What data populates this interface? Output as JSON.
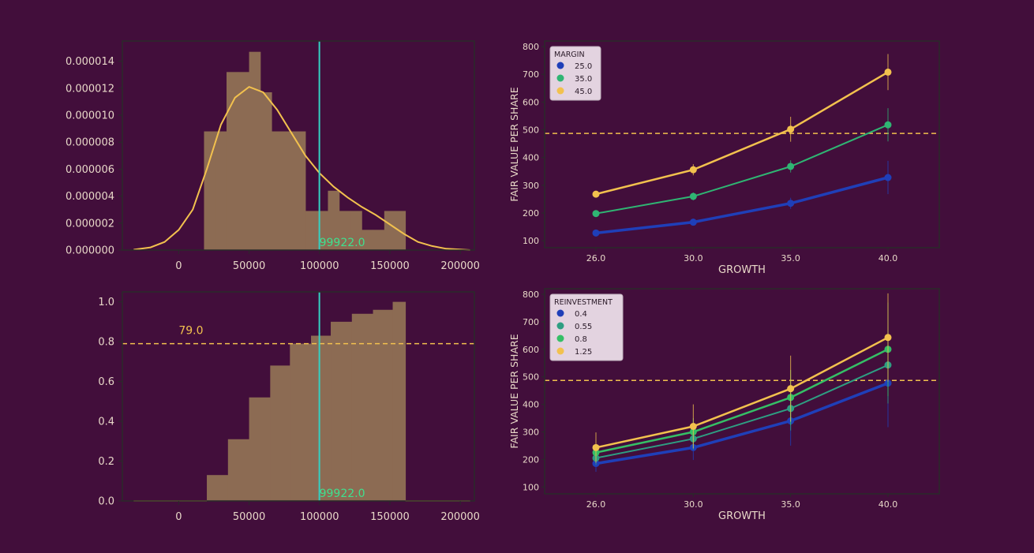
{
  "chart_data": [
    {
      "id": "hist",
      "type": "bar",
      "bins": [
        {
          "x0": 18000,
          "x1": 26000,
          "value": 8.8e-06
        },
        {
          "x0": 26000,
          "x1": 34000,
          "value": 8.8e-06
        },
        {
          "x0": 34000,
          "x1": 42000,
          "value": 1.32e-05
        },
        {
          "x0": 42000,
          "x1": 50000,
          "value": 1.32e-05
        },
        {
          "x0": 50000,
          "x1": 58000,
          "value": 1.47e-05
        },
        {
          "x0": 58000,
          "x1": 66000,
          "value": 1.17e-05
        },
        {
          "x0": 66000,
          "x1": 74000,
          "value": 8.8e-06
        },
        {
          "x0": 74000,
          "x1": 82000,
          "value": 8.8e-06
        },
        {
          "x0": 82000,
          "x1": 90000,
          "value": 8.8e-06
        },
        {
          "x0": 90000,
          "x1": 98000,
          "value": 2.9e-06
        },
        {
          "x0": 98000,
          "x1": 106000,
          "value": 2.9e-06
        },
        {
          "x0": 106000,
          "x1": 114000,
          "value": 4.4e-06
        },
        {
          "x0": 114000,
          "x1": 122000,
          "value": 2.9e-06
        },
        {
          "x0": 122000,
          "x1": 130000,
          "value": 2.9e-06
        },
        {
          "x0": 130000,
          "x1": 138000,
          "value": 1.5e-06
        },
        {
          "x0": 138000,
          "x1": 146000,
          "value": 1.5e-06
        },
        {
          "x0": 146000,
          "x1": 161000,
          "value": 2.9e-06
        }
      ],
      "kde": {
        "x": [
          -32000,
          -20000,
          -10000,
          0,
          10000,
          20000,
          30000,
          40000,
          50000,
          60000,
          70000,
          80000,
          90000,
          100000,
          110000,
          120000,
          130000,
          140000,
          150000,
          160000,
          170000,
          180000,
          190000,
          207000
        ],
        "y": [
          3e-08,
          2e-07,
          6e-07,
          1.5e-06,
          3e-06,
          6e-06,
          9.3e-06,
          1.13e-05,
          1.21e-05,
          1.17e-05,
          1.04e-05,
          8.7e-06,
          7e-06,
          5.7e-06,
          4.7e-06,
          3.9e-06,
          3.2e-06,
          2.6e-06,
          1.9e-06,
          1.2e-06,
          6e-07,
          3e-07,
          1e-07,
          0.0
        ]
      },
      "vline": {
        "x": 99922.0,
        "label": "99922.0"
      },
      "xlim": [
        -40000,
        210000
      ],
      "ylim": [
        0,
        1.55e-05
      ],
      "xticks": [
        0,
        50000,
        100000,
        150000,
        200000
      ],
      "xtick_labels": [
        "0",
        "50000",
        "100000",
        "150000",
        "200000"
      ],
      "yticks": [
        0,
        2e-06,
        4e-06,
        6e-06,
        8e-06,
        1e-05,
        1.2e-05,
        1.4e-05
      ],
      "ytick_labels": [
        "0.000000",
        "0.000002",
        "0.000004",
        "0.000006",
        "0.000008",
        "0.000010",
        "0.000012",
        "0.000014"
      ]
    },
    {
      "id": "cdf",
      "type": "bar",
      "steps": [
        {
          "x0": -32000,
          "x1": 20000,
          "value": 0.0
        },
        {
          "x0": 20000,
          "x1": 35000,
          "value": 0.13
        },
        {
          "x0": 35000,
          "x1": 50000,
          "value": 0.31
        },
        {
          "x0": 50000,
          "x1": 65000,
          "value": 0.52
        },
        {
          "x0": 65000,
          "x1": 79000,
          "value": 0.68
        },
        {
          "x0": 79000,
          "x1": 94000,
          "value": 0.79
        },
        {
          "x0": 94000,
          "x1": 108000,
          "value": 0.83
        },
        {
          "x0": 108000,
          "x1": 123000,
          "value": 0.9
        },
        {
          "x0": 123000,
          "x1": 138000,
          "value": 0.94
        },
        {
          "x0": 138000,
          "x1": 152000,
          "value": 0.96
        },
        {
          "x0": 152000,
          "x1": 161000,
          "value": 1.0
        },
        {
          "x0": 161000,
          "x1": 207000,
          "value": 0.0
        }
      ],
      "hline": {
        "y": 0.79,
        "label": "79.0",
        "label_x": 0
      },
      "vline": {
        "x": 99922.0,
        "label": "99922.0"
      },
      "xlim": [
        -40000,
        210000
      ],
      "ylim": [
        0,
        1.05
      ],
      "xticks": [
        0,
        50000,
        100000,
        150000,
        200000
      ],
      "xtick_labels": [
        "0",
        "50000",
        "100000",
        "150000",
        "200000"
      ],
      "yticks": [
        0,
        0.2,
        0.4,
        0.6,
        0.8,
        1.0
      ],
      "ytick_labels": [
        "0.0",
        "0.2",
        "0.4",
        "0.6",
        "0.8",
        "1.0"
      ]
    },
    {
      "id": "margin",
      "type": "line",
      "categories": [
        "26.0",
        "30.0",
        "35.0",
        "40.0"
      ],
      "xlabel": "GROWTH",
      "ylabel": "FAIR VALUE PER SHARE",
      "ylim": [
        75,
        820
      ],
      "yticks": [
        100,
        200,
        300,
        400,
        500,
        600,
        700,
        800
      ],
      "hline": 487,
      "legend": {
        "title": "MARGIN",
        "placement": "top-left"
      },
      "series": [
        {
          "name": "25.0",
          "color": "#1f3fb8",
          "width": 3.5,
          "values": [
            128,
            167,
            235,
            328
          ],
          "err": [
            8,
            12,
            20,
            60
          ]
        },
        {
          "name": "35.0",
          "color": "#2fb573",
          "width": 2,
          "values": [
            198,
            260,
            368,
            518
          ],
          "err": [
            8,
            14,
            22,
            60
          ]
        },
        {
          "name": "45.0",
          "color": "#f2c14e",
          "width": 2.5,
          "values": [
            268,
            356,
            502,
            708
          ],
          "err": [
            10,
            20,
            45,
            65
          ]
        }
      ]
    },
    {
      "id": "reinvestment",
      "type": "line",
      "categories": [
        "26.0",
        "30.0",
        "35.0",
        "40.0"
      ],
      "xlabel": "GROWTH",
      "ylabel": "FAIR VALUE PER SHARE",
      "ylim": [
        75,
        820
      ],
      "yticks": [
        100,
        200,
        300,
        400,
        500,
        600,
        700,
        800
      ],
      "hline": 487,
      "legend": {
        "title": "REINVESTMENT",
        "placement": "top-left"
      },
      "series": [
        {
          "name": "0.4",
          "color": "#1f3fb8",
          "width": 3.5,
          "values": [
            185,
            243,
            340,
            477
          ],
          "err": [
            30,
            45,
            90,
            160
          ]
        },
        {
          "name": "0.55",
          "color": "#2e9e82",
          "width": 2,
          "values": [
            205,
            275,
            385,
            543
          ],
          "err": [
            25,
            40,
            80,
            140
          ]
        },
        {
          "name": "0.8",
          "color": "#35bf66",
          "width": 2.5,
          "values": [
            225,
            300,
            425,
            600
          ],
          "err": [
            30,
            50,
            100,
            170
          ]
        },
        {
          "name": "1.25",
          "color": "#f2c14e",
          "width": 2.5,
          "values": [
            243,
            320,
            457,
            643
          ],
          "err": [
            55,
            80,
            120,
            160
          ]
        }
      ]
    }
  ]
}
